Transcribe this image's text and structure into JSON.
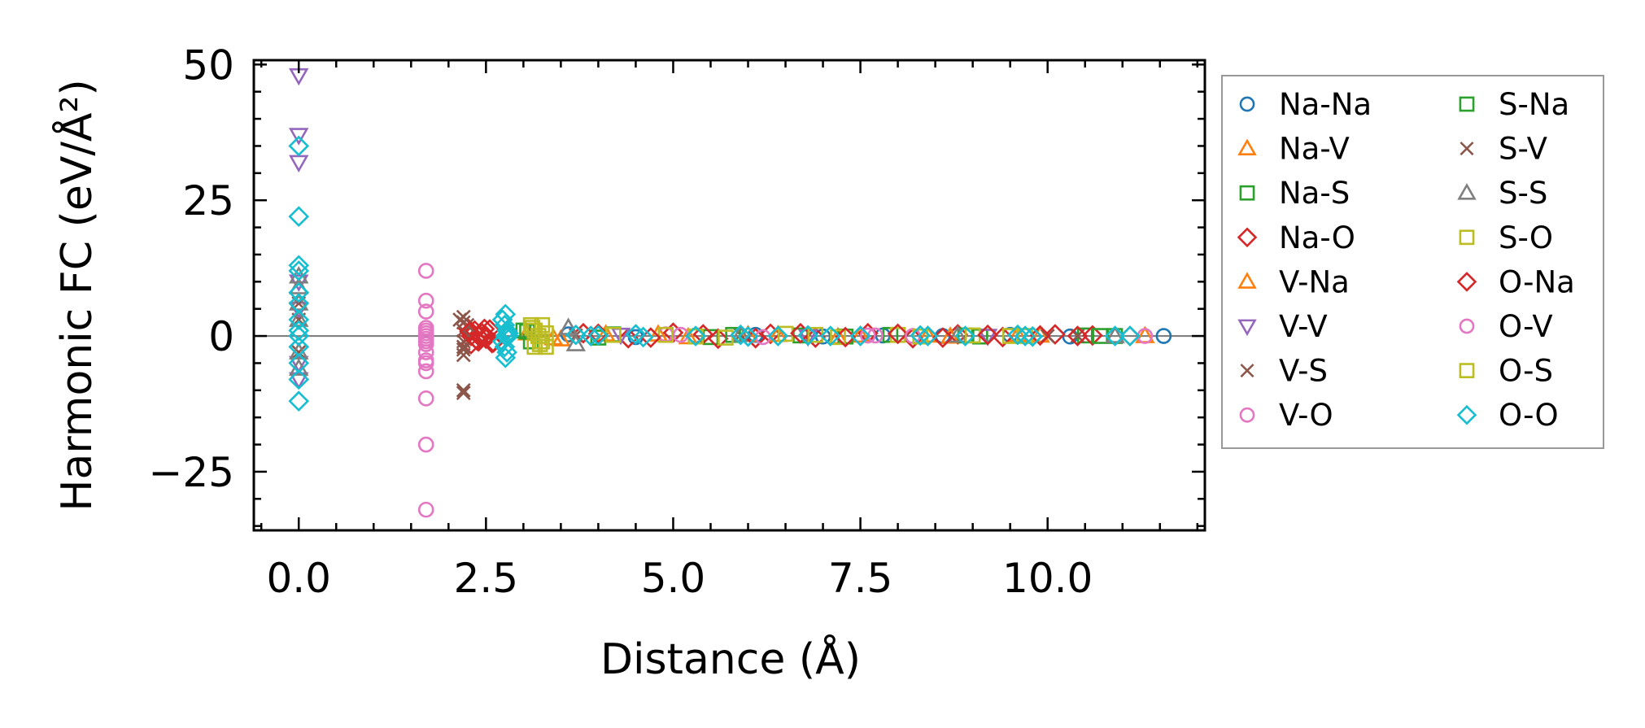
{
  "chart_data": {
    "type": "scatter",
    "title": "",
    "xlabel": "Distance (Å)",
    "ylabel": "Harmonic FC (eV/Å²)",
    "xlim": [
      -0.6,
      12.1
    ],
    "ylim": [
      -35.8,
      50.8
    ],
    "xticks": [
      0.0,
      2.5,
      5.0,
      7.5,
      10.0
    ],
    "xtick_labels": [
      "0.0",
      "2.5",
      "5.0",
      "7.5",
      "10.0"
    ],
    "yticks": [
      -25,
      0,
      25,
      50
    ],
    "ytick_labels": [
      "−25",
      "0",
      "25",
      "50"
    ],
    "grid": false,
    "reference_line_y": 0,
    "legend_position": "outside-right",
    "legend_columns": 2,
    "series": [
      {
        "name": "Na-Na",
        "color": "#1f77b4",
        "marker": "circle",
        "x": [
          3.6,
          4.5,
          5.3,
          6.1,
          7.0,
          7.8,
          8.6,
          9.5,
          10.3,
          11.55
        ],
        "y": [
          0.3,
          -0.2,
          0.1,
          0.2,
          -0.1,
          0.1,
          0,
          0.2,
          -0.1,
          0
        ]
      },
      {
        "name": "Na-V",
        "color": "#ff7f0e",
        "marker": "triangle-up",
        "x": [
          3.05,
          3.5,
          4.8,
          6.0,
          7.2,
          8.4,
          9.6,
          11.3
        ],
        "y": [
          0.5,
          -0.6,
          0.3,
          0.2,
          -0.2,
          0.1,
          0.2,
          0
        ]
      },
      {
        "name": "Na-S",
        "color": "#2ca02c",
        "marker": "square",
        "x": [
          3.0,
          3.1,
          4.2,
          5.5,
          6.7,
          7.9,
          9.1,
          10.5,
          10.9
        ],
        "y": [
          1.0,
          -1.0,
          0.3,
          -0.2,
          0.1,
          0.2,
          -0.1,
          0.1,
          0
        ]
      },
      {
        "name": "Na-O",
        "color": "#d62728",
        "marker": "diamond",
        "x": [
          2.25,
          2.3,
          2.35,
          2.4,
          2.45,
          2.5,
          2.55,
          2.6,
          2.3,
          2.4,
          2.5,
          3.8,
          4.4,
          5.0,
          5.6,
          6.3,
          6.9,
          7.6,
          8.2,
          8.8,
          9.4,
          10.1,
          10.6,
          11.1
        ],
        "y": [
          1.5,
          -1.5,
          1.0,
          -1.0,
          0.5,
          -0.5,
          1.2,
          -1.2,
          0,
          0,
          0,
          0.5,
          -0.4,
          0.6,
          -0.5,
          0.4,
          -0.3,
          0.5,
          -0.4,
          0.3,
          -0.2,
          0.3,
          0.1,
          0
        ]
      },
      {
        "name": "V-Na",
        "color": "#ff7f0e",
        "marker": "triangle-up",
        "x": [
          3.4,
          4.1,
          5.2,
          6.4,
          7.5,
          8.7,
          9.9
        ],
        "y": [
          -0.4,
          0.3,
          -0.2,
          0.2,
          0.1,
          -0.1,
          0.1
        ]
      },
      {
        "name": "V-V",
        "color": "#9467bd",
        "marker": "triangle-down",
        "x": [
          0,
          0,
          0,
          0,
          0,
          0,
          0,
          4.3,
          6.8,
          9.2
        ],
        "y": [
          48,
          37,
          32,
          10,
          5,
          -5,
          -8,
          0.2,
          -0.1,
          0
        ]
      },
      {
        "name": "V-S",
        "color": "#8c564b",
        "marker": "x",
        "x": [
          0,
          0,
          0,
          2.2,
          2.2,
          2.2,
          2.2,
          2.2,
          2.2,
          2.2,
          5.9,
          10.4
        ],
        "y": [
          3,
          -3,
          6,
          3.5,
          2.5,
          1,
          -1,
          -2.5,
          -3.5,
          -10,
          0.2,
          0
        ]
      },
      {
        "name": "V-O",
        "color": "#e377c2",
        "marker": "circle",
        "x": [
          1.7,
          1.7,
          1.7,
          1.7,
          1.7,
          1.7,
          1.7,
          1.7,
          1.7,
          1.7,
          1.7,
          1.7,
          1.7,
          4.9,
          7.6,
          11.3
        ],
        "y": [
          12,
          6.5,
          4.5,
          1.5,
          0.5,
          -0.5,
          -1.5,
          -3,
          -4.5,
          -6.5,
          -11.5,
          -20,
          -32,
          0.3,
          0.1,
          0
        ]
      },
      {
        "name": "S-Na",
        "color": "#2ca02c",
        "marker": "square",
        "x": [
          3.05,
          4.0,
          5.8,
          7.3,
          8.9,
          10.7
        ],
        "y": [
          0.8,
          -0.3,
          0.2,
          -0.1,
          0.1,
          0
        ]
      },
      {
        "name": "S-V",
        "color": "#8c564b",
        "marker": "x",
        "x": [
          2.15,
          2.2,
          2.25,
          2.2,
          3.7,
          10.0
        ],
        "y": [
          3,
          -2,
          2,
          -10.5,
          0.1,
          0
        ]
      },
      {
        "name": "S-S",
        "color": "#7f7f7f",
        "marker": "triangle-up",
        "x": [
          0,
          0,
          0,
          0,
          0,
          0,
          3.6,
          3.7,
          5.9,
          8.8,
          10.9
        ],
        "y": [
          11,
          9,
          6,
          3,
          -3,
          -6,
          1.5,
          -1.5,
          0.2,
          0.1,
          0
        ]
      },
      {
        "name": "S-O",
        "color": "#bcbd22",
        "marker": "square",
        "x": [
          3.1,
          3.15,
          3.2,
          3.25,
          3.3,
          3.15,
          3.25,
          4.9,
          5.7,
          6.5,
          7.2,
          8.0,
          9.0,
          9.7
        ],
        "y": [
          2.0,
          1.0,
          0,
          -1.0,
          -2.0,
          -2.0,
          2.0,
          0.2,
          -0.3,
          0.4,
          -0.2,
          0.2,
          0.1,
          0
        ]
      },
      {
        "name": "O-Na",
        "color": "#d62728",
        "marker": "diamond",
        "x": [
          2.28,
          2.38,
          2.48,
          2.58,
          4.0,
          4.7,
          5.4,
          6.1,
          6.7,
          7.3,
          8.0,
          8.6,
          9.2,
          9.9,
          10.4
        ],
        "y": [
          0.8,
          -0.8,
          1.3,
          -1.3,
          0.4,
          -0.3,
          0.3,
          -0.4,
          0.5,
          -0.2,
          0.4,
          -0.3,
          0.2,
          0.1,
          0
        ]
      },
      {
        "name": "O-V",
        "color": "#e377c2",
        "marker": "circle",
        "x": [
          1.7,
          1.7,
          1.7,
          1.7,
          5.1,
          6.2,
          7.7,
          8.2
        ],
        "y": [
          0,
          -1,
          1,
          -5,
          0.2,
          -0.2,
          0.1,
          0
        ]
      },
      {
        "name": "O-S",
        "color": "#bcbd22",
        "marker": "square",
        "x": [
          3.12,
          3.22,
          3.3,
          4.2,
          5.3,
          6.9,
          8.3,
          9.5
        ],
        "y": [
          1.5,
          -1.5,
          0.5,
          0.2,
          -0.1,
          0.2,
          -0.1,
          0
        ]
      },
      {
        "name": "O-O",
        "color": "#17becf",
        "marker": "diamond",
        "x": [
          0,
          0,
          0,
          0,
          0,
          0,
          0,
          0,
          0,
          0,
          0,
          0,
          0,
          2.72,
          2.75,
          2.78,
          2.8,
          2.72,
          2.75,
          2.78,
          2.8,
          2.76,
          2.76,
          2.76,
          3.7,
          3.9,
          4.0,
          4.5,
          4.6,
          5.3,
          5.9,
          6.0,
          6.4,
          6.8,
          7.1,
          7.5,
          8.3,
          8.4,
          8.9,
          9.6,
          9.7,
          9.8,
          10.9,
          11.1
        ],
        "y": [
          35,
          22,
          13,
          12,
          8,
          6,
          3,
          1,
          0,
          -2,
          -5,
          -8,
          -12,
          3,
          2,
          1,
          0,
          -1,
          -2,
          -3,
          0.5,
          4,
          -4,
          0,
          0.2,
          0,
          0.1,
          0.3,
          -0.2,
          0,
          0.2,
          -0.1,
          0,
          0.1,
          0,
          0,
          0.1,
          0,
          0,
          0.2,
          0,
          -0.1,
          0,
          0
        ]
      }
    ],
    "legend": [
      {
        "label": "Na-Na",
        "color": "#1f77b4",
        "marker": "circle"
      },
      {
        "label": "Na-V",
        "color": "#ff7f0e",
        "marker": "triangle-up"
      },
      {
        "label": "Na-S",
        "color": "#2ca02c",
        "marker": "square"
      },
      {
        "label": "Na-O",
        "color": "#d62728",
        "marker": "diamond"
      },
      {
        "label": "V-Na",
        "color": "#ff7f0e",
        "marker": "triangle-up"
      },
      {
        "label": "V-V",
        "color": "#9467bd",
        "marker": "triangle-down"
      },
      {
        "label": "V-S",
        "color": "#8c564b",
        "marker": "x"
      },
      {
        "label": "V-O",
        "color": "#e377c2",
        "marker": "circle"
      },
      {
        "label": "S-Na",
        "color": "#2ca02c",
        "marker": "square"
      },
      {
        "label": "S-V",
        "color": "#8c564b",
        "marker": "x"
      },
      {
        "label": "S-S",
        "color": "#7f7f7f",
        "marker": "triangle-up"
      },
      {
        "label": "S-O",
        "color": "#bcbd22",
        "marker": "square"
      },
      {
        "label": "O-Na",
        "color": "#d62728",
        "marker": "diamond"
      },
      {
        "label": "O-V",
        "color": "#e377c2",
        "marker": "circle"
      },
      {
        "label": "O-S",
        "color": "#bcbd22",
        "marker": "square"
      },
      {
        "label": "O-O",
        "color": "#17becf",
        "marker": "diamond"
      }
    ]
  }
}
